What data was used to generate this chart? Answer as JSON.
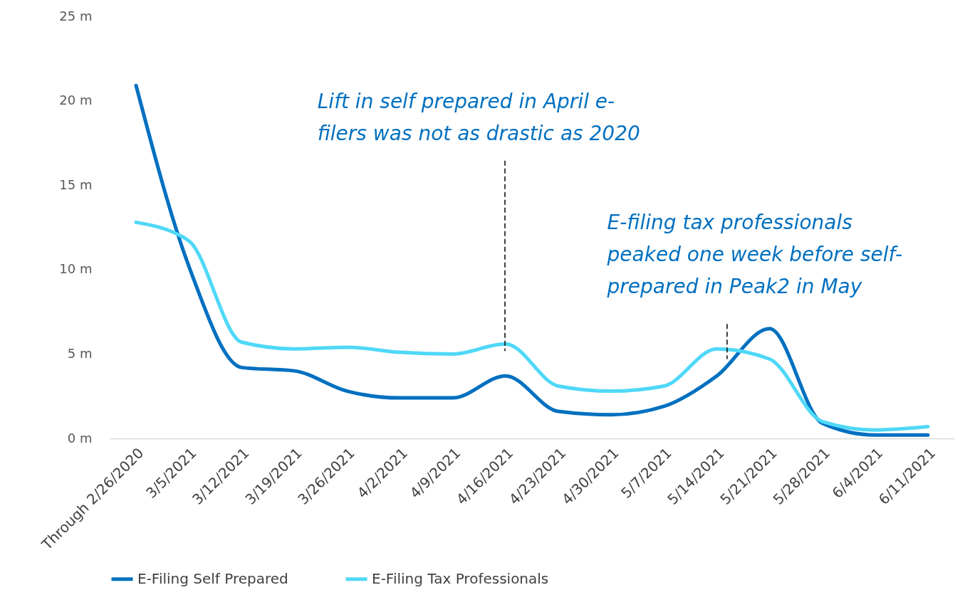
{
  "chart_data": {
    "type": "line",
    "categories": [
      "Through 2/26/2020",
      "3/5/2021",
      "3/12/2021",
      "3/19/2021",
      "3/26/2021",
      "4/2/2021",
      "4/9/2021",
      "4/16/2021",
      "4/23/2021",
      "4/30/2021",
      "5/7/2021",
      "5/14/2021",
      "5/21/2021",
      "5/28/2021",
      "6/4/2021",
      "6/11/2021"
    ],
    "series": [
      {
        "name": "E-Filing Self Prepared",
        "color": "#0070c0",
        "values": [
          20.9,
          10.2,
          4.2,
          4.0,
          2.8,
          2.4,
          2.4,
          3.7,
          1.6,
          1.4,
          1.9,
          3.7,
          6.5,
          0.9,
          0.2,
          0.2
        ]
      },
      {
        "name": "E-Filing Tax Professionals",
        "color": "#4fd8f8",
        "values": [
          12.8,
          11.7,
          5.7,
          5.3,
          5.4,
          5.1,
          5.0,
          5.6,
          3.1,
          2.8,
          3.1,
          5.3,
          4.7,
          1.0,
          0.5,
          0.7
        ]
      }
    ],
    "ylim": [
      0,
      25
    ],
    "yticks": [
      {
        "value": 0,
        "label": "0 m"
      },
      {
        "value": 5,
        "label": "5 m"
      },
      {
        "value": 10,
        "label": "10 m"
      },
      {
        "value": 15,
        "label": "15 m"
      },
      {
        "value": 20,
        "label": "20 m"
      },
      {
        "value": 25,
        "label": "25 m"
      }
    ],
    "annotations": [
      "Lift in self prepared in April e-filers was not as drastic as 2020",
      "E-filing tax professionals peaked one week before self-prepared in Peak2 in May"
    ],
    "legend": "bottom"
  }
}
